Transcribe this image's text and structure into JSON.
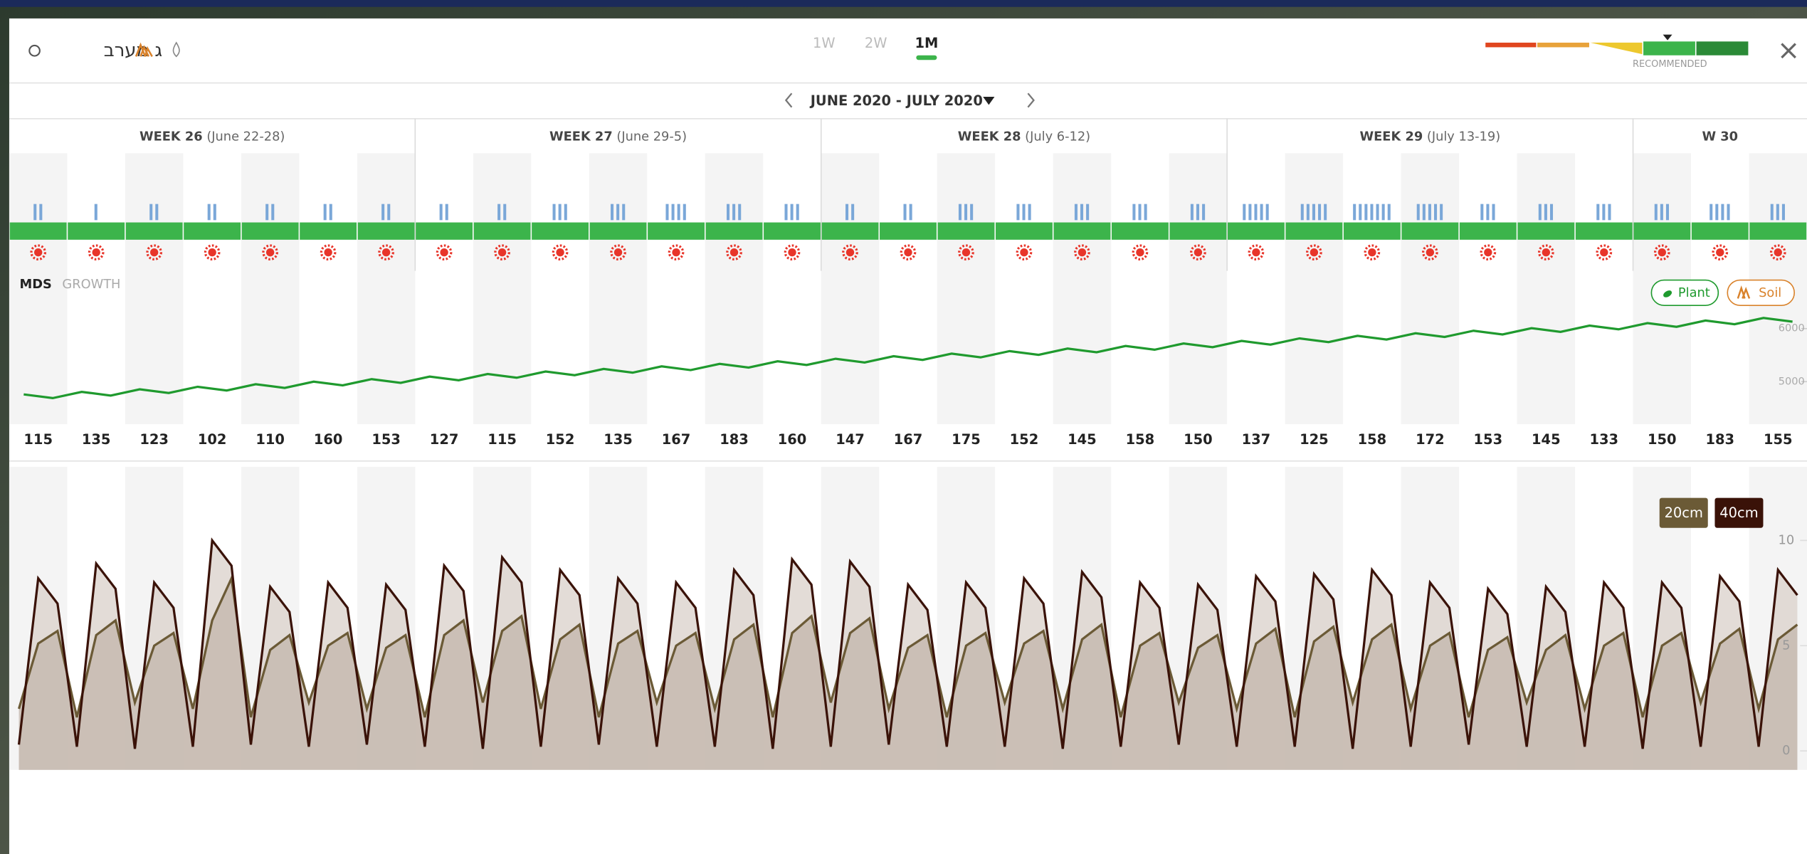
{
  "header": {
    "title": "ג מערב",
    "tabs": [
      "1W",
      "2W",
      "1M"
    ],
    "active_tab": 2
  },
  "legend": {
    "label": "RECOMMENDED"
  },
  "date_range": "JUNE 2020 - JULY 2020",
  "weeks": [
    {
      "label": "WEEK 26",
      "range": "(June 22-28)"
    },
    {
      "label": "WEEK 27",
      "range": "(June 29-5)"
    },
    {
      "label": "WEEK 28",
      "range": "(July 6-12)"
    },
    {
      "label": "WEEK 29",
      "range": "(July 13-19)"
    },
    {
      "label": "W 30"
    }
  ],
  "irrigation_events": [
    2,
    1,
    2,
    2,
    2,
    2,
    2,
    2,
    2,
    3,
    3,
    4,
    3,
    3,
    2,
    2,
    3,
    3,
    3,
    3,
    3,
    5,
    5,
    7,
    5,
    3,
    3,
    3,
    3,
    4,
    3
  ],
  "daily_values": [
    115,
    135,
    123,
    102,
    110,
    160,
    153,
    127,
    115,
    152,
    135,
    167,
    183,
    160,
    147,
    167,
    175,
    152,
    145,
    158,
    150,
    137,
    125,
    158,
    172,
    153,
    145,
    133,
    150,
    183,
    155
  ],
  "mds_chart": {
    "type": "line",
    "tabs": [
      "MDS",
      "GROWTH"
    ],
    "buttons": [
      "Plant",
      "Soil"
    ],
    "color": "#1f9a2e",
    "values": [
      4760,
      4690,
      4808,
      4738,
      4856,
      4786,
      4904,
      4834,
      4952,
      4882,
      5000,
      4930,
      5048,
      4978,
      5096,
      5026,
      5144,
      5074,
      5192,
      5122,
      5240,
      5170,
      5288,
      5218,
      5336,
      5266,
      5384,
      5314,
      5432,
      5362,
      5480,
      5410,
      5528,
      5458,
      5576,
      5506,
      5624,
      5554,
      5672,
      5602,
      5720,
      5650,
      5768,
      5698,
      5816,
      5746,
      5864,
      5794,
      5912,
      5842,
      5960,
      5890,
      6008,
      5938,
      6056,
      5986,
      6104,
      6034,
      6152,
      6082,
      6200,
      6130
    ],
    "ylim": [
      4200,
      6980
    ],
    "yticks": [
      5000,
      6000
    ]
  },
  "soil_chart": {
    "type": "area",
    "series": [
      {
        "name": "20cm",
        "color": "#6b5a36",
        "values": [
          2.0,
          5.1,
          5.7,
          1.6,
          5.5,
          6.2,
          2.3,
          5.0,
          5.6,
          2.0,
          6.2,
          8.2,
          1.6,
          4.8,
          5.5,
          2.3,
          5.0,
          5.6,
          2.0,
          4.9,
          5.5,
          1.6,
          5.5,
          6.2,
          2.3,
          5.7,
          6.4,
          2.0,
          5.3,
          6.0,
          1.6,
          5.1,
          5.7,
          2.3,
          5.0,
          5.6,
          2.0,
          5.3,
          6.0,
          1.6,
          5.6,
          6.4,
          2.3,
          5.6,
          6.3,
          2.0,
          4.9,
          5.5,
          1.6,
          5.0,
          5.6,
          2.3,
          5.1,
          5.7,
          2.0,
          5.3,
          6.0,
          1.6,
          5.0,
          5.6,
          2.3,
          4.9,
          5.5,
          2.0,
          5.1,
          5.8,
          1.6,
          5.2,
          5.9,
          2.3,
          5.3,
          6.0,
          2.0,
          5.0,
          5.6,
          1.6,
          4.8,
          5.4,
          2.3,
          4.8,
          5.5,
          2.0,
          5.0,
          5.6,
          1.6,
          5.0,
          5.6,
          2.3,
          5.1,
          5.8,
          2.0,
          5.3,
          6.0
        ]
      },
      {
        "name": "40cm",
        "color": "#3a1208",
        "values": [
          0.3,
          8.2,
          7.0,
          0.2,
          8.9,
          7.7,
          0.1,
          8.0,
          6.8,
          0.2,
          10.0,
          8.8,
          0.3,
          7.8,
          6.6,
          0.2,
          8.0,
          6.8,
          0.3,
          7.9,
          6.7,
          0.2,
          8.8,
          7.6,
          0.1,
          9.2,
          8.0,
          0.2,
          8.6,
          7.4,
          0.3,
          8.2,
          7.0,
          0.2,
          8.0,
          6.8,
          0.2,
          8.6,
          7.4,
          0.1,
          9.1,
          7.9,
          0.2,
          9.0,
          7.8,
          0.3,
          7.9,
          6.7,
          0.2,
          8.0,
          6.8,
          0.2,
          8.2,
          7.0,
          0.1,
          8.5,
          7.3,
          0.2,
          8.0,
          6.8,
          0.3,
          7.9,
          6.7,
          0.2,
          8.3,
          7.1,
          0.2,
          8.4,
          7.2,
          0.1,
          8.6,
          7.4,
          0.2,
          8.0,
          6.8,
          0.3,
          7.7,
          6.5,
          0.2,
          7.8,
          6.6,
          0.2,
          8.0,
          6.8,
          0.1,
          8.0,
          6.8,
          0.2,
          8.3,
          7.1,
          0.2,
          8.6,
          7.4
        ]
      }
    ],
    "ylim": [
      -0.9,
      13.5
    ],
    "yticks": [
      0,
      5,
      10
    ]
  }
}
